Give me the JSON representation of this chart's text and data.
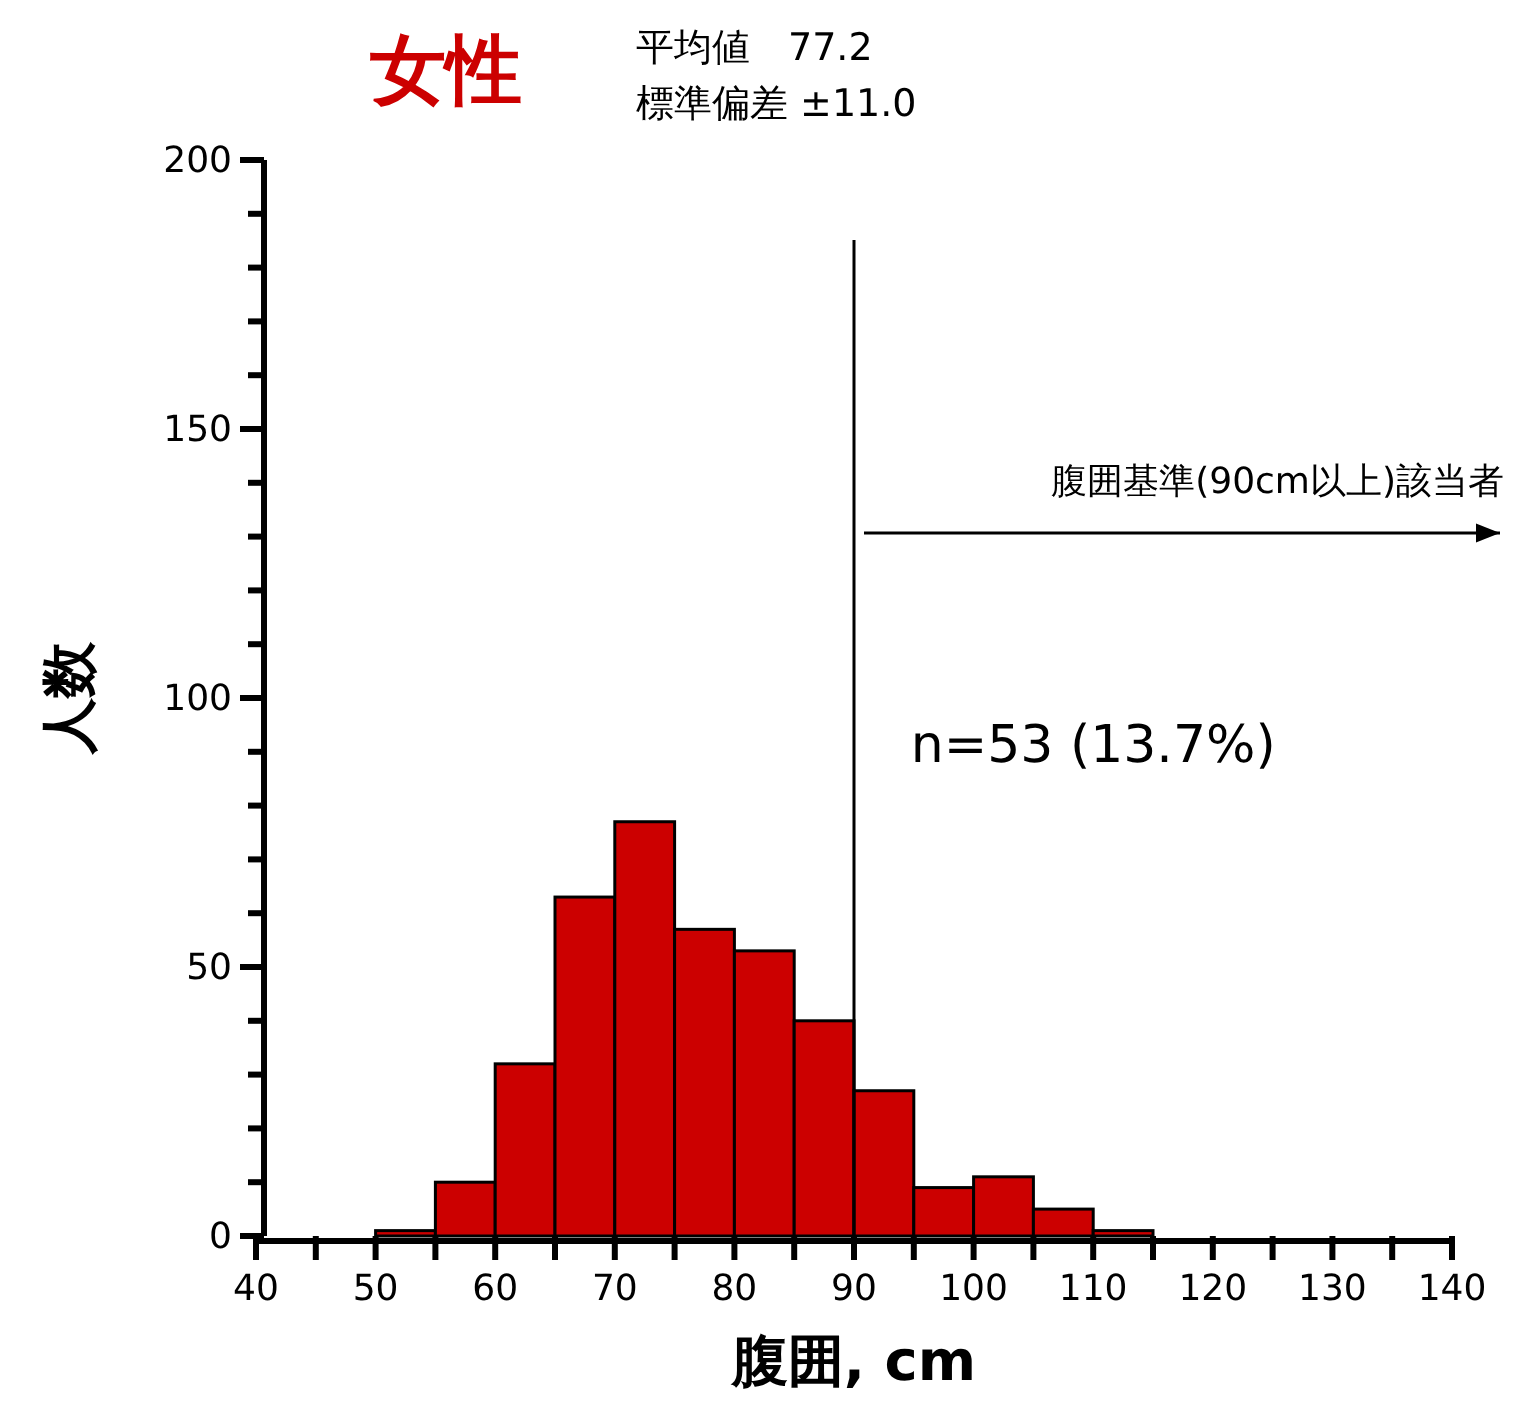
{
  "chart_data": {
    "type": "histogram",
    "title": "女性",
    "xlabel": "腹囲, cm",
    "ylabel": "人数",
    "bins": [
      50,
      55,
      60,
      65,
      70,
      75,
      80,
      85,
      90,
      95,
      100,
      105,
      110,
      115
    ],
    "values": [
      1,
      10,
      32,
      63,
      77,
      57,
      53,
      40,
      27,
      9,
      11,
      5,
      1
    ],
    "color": "#cc0000",
    "xlim": [
      40,
      140
    ],
    "xticks": [
      40,
      {
        "value": 45,
        "label": null
      },
      50,
      {
        "value": 55,
        "label": null
      },
      60,
      {
        "value": 65,
        "label": null
      },
      70,
      {
        "value": 75,
        "label": null
      },
      80,
      {
        "value": 85,
        "label": null
      },
      90,
      {
        "value": 95,
        "label": null
      },
      100,
      {
        "value": 105,
        "label": null
      },
      110,
      {
        "value": 115,
        "label": null
      },
      120,
      {
        "value": 125,
        "label": null
      },
      130,
      {
        "value": 135,
        "label": null
      },
      140
    ],
    "ylim": [
      0,
      200
    ],
    "yticks": [
      0,
      {
        "value": 10,
        "label": null
      },
      {
        "value": 20,
        "label": null
      },
      {
        "value": 30,
        "label": null
      },
      {
        "value": 40,
        "label": null
      },
      50,
      {
        "value": 60,
        "label": null
      },
      {
        "value": 70,
        "label": null
      },
      {
        "value": 80,
        "label": null
      },
      {
        "value": 90,
        "label": null
      },
      100,
      {
        "value": 110,
        "label": null
      },
      {
        "value": 120,
        "label": null
      },
      {
        "value": 130,
        "label": null
      },
      {
        "value": 140,
        "label": null
      },
      150,
      {
        "value": 160,
        "label": null
      },
      {
        "value": 170,
        "label": null
      },
      {
        "value": 180,
        "label": null
      },
      {
        "value": 190,
        "label": null
      },
      200
    ],
    "grid": false,
    "legend": false,
    "ref_lines": [
      {
        "axis": "x",
        "value": 90,
        "color": "#000000"
      }
    ],
    "annotations": [
      "平均値　77.2",
      "標準偏差 ±11.0",
      "腹囲基準(90cm以上)該当者",
      "n=53 (13.7%)"
    ]
  }
}
